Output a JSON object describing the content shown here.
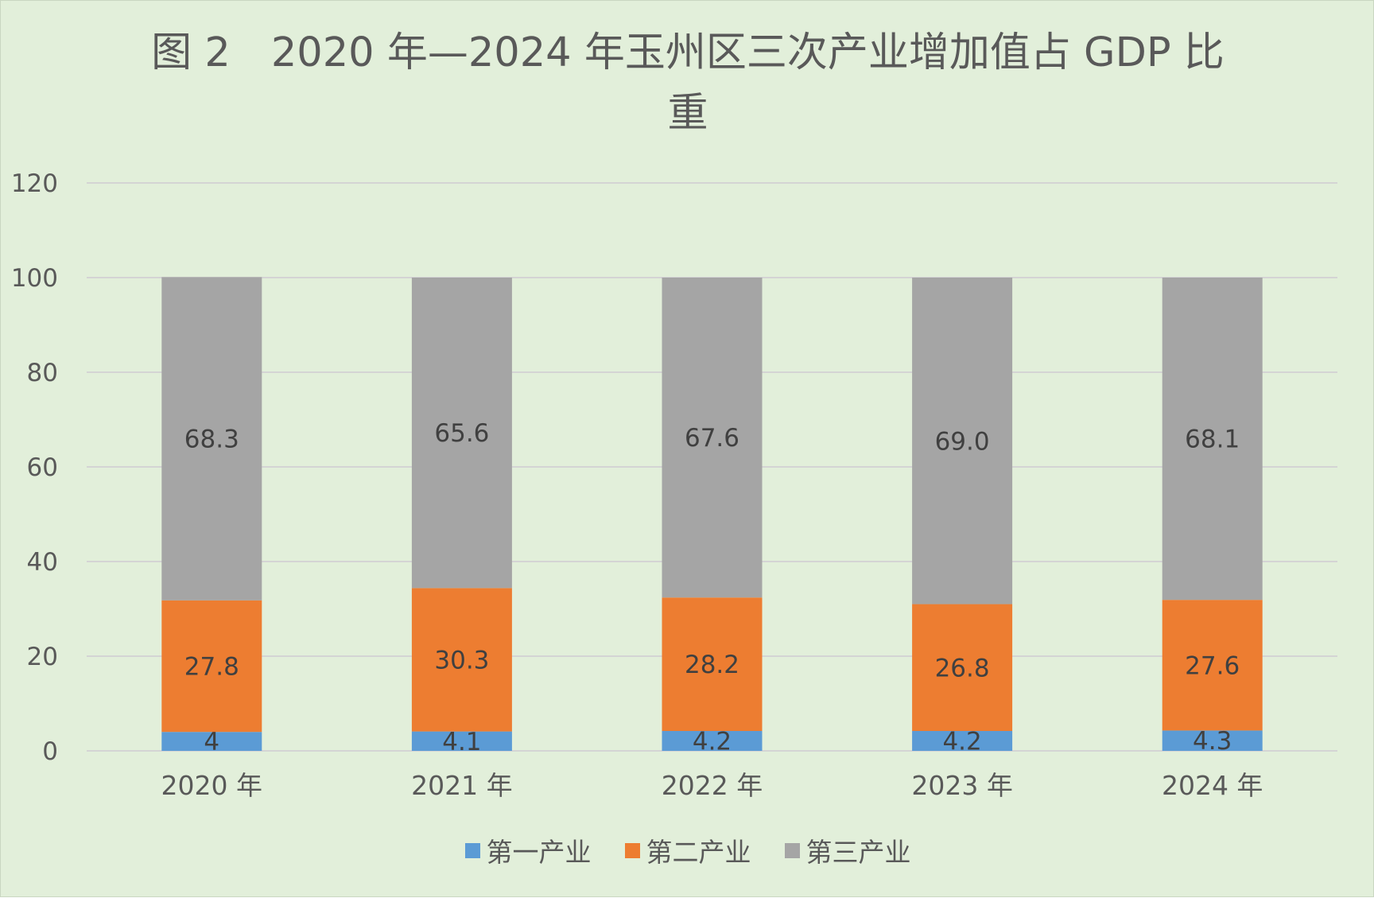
{
  "chart_data": {
    "type": "bar",
    "stacked": true,
    "title": "图 2　2020 年—2024 年玉州区三次产业增加值占 GDP 比\n重",
    "categories": [
      "2020 年",
      "2021 年",
      "2022 年",
      "2023 年",
      "2024 年"
    ],
    "series": [
      {
        "name": "第一产业",
        "color": "#5b9bd5",
        "values": [
          4,
          4.1,
          4.2,
          4.2,
          4.3
        ],
        "labels": [
          "4",
          "4.1",
          "4.2",
          "4.2",
          "4.3"
        ]
      },
      {
        "name": "第二产业",
        "color": "#ed7d31",
        "values": [
          27.8,
          30.3,
          28.2,
          26.8,
          27.6
        ],
        "labels": [
          "27.8",
          "30.3",
          "28.2",
          "26.8",
          "27.6"
        ]
      },
      {
        "name": "第三产业",
        "color": "#a5a5a5",
        "values": [
          68.3,
          65.6,
          67.6,
          69.0,
          68.1
        ],
        "labels": [
          "68.3",
          "65.6",
          "67.6",
          "69.0",
          "68.1"
        ]
      }
    ],
    "ylim": [
      0,
      120
    ],
    "yticks": [
      0,
      20,
      40,
      60,
      80,
      100,
      120
    ],
    "grid": true,
    "legend_position": "bottom",
    "xlabel": "",
    "ylabel": ""
  }
}
